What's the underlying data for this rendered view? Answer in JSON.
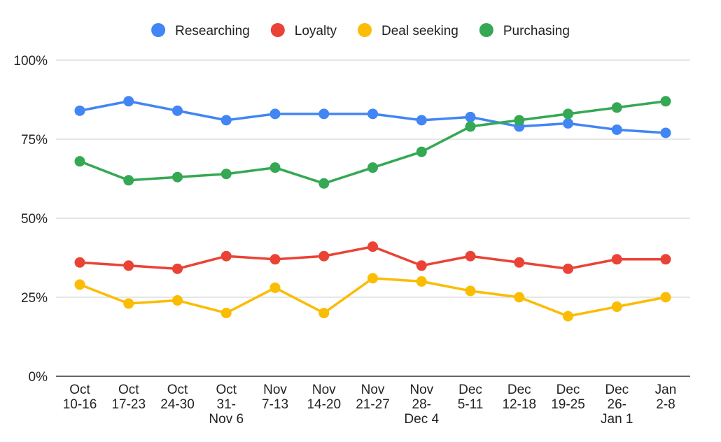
{
  "chart_data": {
    "type": "line",
    "title": "",
    "xlabel": "",
    "ylabel": "",
    "categories": [
      [
        "Oct",
        "10-16"
      ],
      [
        "Oct",
        "17-23"
      ],
      [
        "Oct",
        "24-30"
      ],
      [
        "Oct",
        "31-",
        "Nov 6"
      ],
      [
        "Nov",
        "7-13"
      ],
      [
        "Nov",
        "14-20"
      ],
      [
        "Nov",
        "21-27"
      ],
      [
        "Nov",
        "28-",
        "Dec 4"
      ],
      [
        "Dec",
        "5-11"
      ],
      [
        "Dec",
        "12-18"
      ],
      [
        "Dec",
        "19-25"
      ],
      [
        "Dec",
        "26-",
        "Jan 1"
      ],
      [
        "Jan",
        "2-8"
      ]
    ],
    "ylim": [
      0,
      100
    ],
    "yticks": [
      0,
      25,
      50,
      75,
      100
    ],
    "ytick_labels": [
      "0%",
      "25%",
      "50%",
      "75%",
      "100%"
    ],
    "grid": true,
    "legend_position": "top",
    "series": [
      {
        "name": "Researching",
        "color": "#4285F4",
        "values": [
          84,
          87,
          84,
          81,
          83,
          83,
          83,
          81,
          82,
          79,
          80,
          78,
          77
        ]
      },
      {
        "name": "Loyalty",
        "color": "#EA4335",
        "values": [
          36,
          35,
          34,
          38,
          37,
          38,
          41,
          35,
          38,
          36,
          34,
          37,
          37
        ]
      },
      {
        "name": "Deal seeking",
        "color": "#FBBC04",
        "values": [
          29,
          23,
          24,
          20,
          28,
          20,
          31,
          30,
          27,
          25,
          19,
          22,
          25
        ]
      },
      {
        "name": "Purchasing",
        "color": "#34A853",
        "values": [
          68,
          62,
          63,
          64,
          66,
          61,
          66,
          71,
          79,
          81,
          83,
          85,
          87
        ]
      }
    ]
  }
}
